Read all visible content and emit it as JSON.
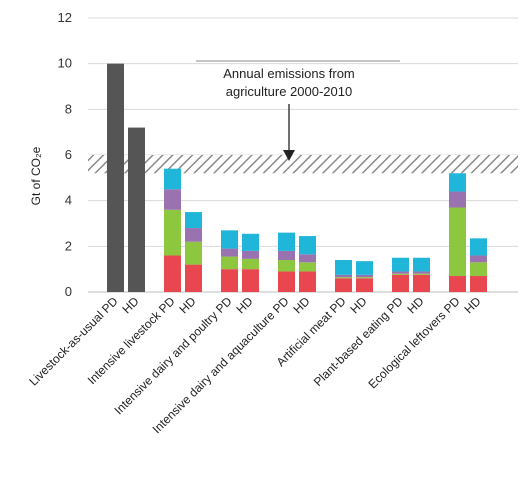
{
  "chart_data": {
    "type": "bar",
    "stacked": true,
    "ylabel": "Gt of CO₂e",
    "ylim": [
      0,
      12
    ],
    "yticks": [
      0,
      2,
      4,
      6,
      8,
      10,
      12
    ],
    "grid": true,
    "legend": "none",
    "groups": [
      "Livestock-as-usual",
      "Intensive livestock",
      "Intensive dairy and poultry",
      "Intensive dairy and aquaculture",
      "Artificial meat",
      "Plant-based eating",
      "Ecological leftovers"
    ],
    "categories": [
      "Livestock-as-usual PD",
      "HD",
      "Intensive livestock PD",
      "HD",
      "Intensive dairy and poultry PD",
      "HD",
      "Intensive dairy and aquaculture PD",
      "HD",
      "Artificial meat PD",
      "HD",
      "Plant-based eating PD",
      "HD",
      "Ecological leftovers PD",
      "HD"
    ],
    "series": [
      {
        "color": "#555555",
        "values": [
          10.0,
          7.2,
          0,
          0,
          0,
          0,
          0,
          0,
          0,
          0,
          0,
          0,
          0,
          0
        ]
      },
      {
        "color": "#e8474f",
        "values": [
          0,
          0,
          1.6,
          1.2,
          1.0,
          1.0,
          0.9,
          0.9,
          0.6,
          0.6,
          0.75,
          0.75,
          0.7,
          0.7
        ]
      },
      {
        "color": "#8dc63f",
        "values": [
          0,
          0,
          2.0,
          1.0,
          0.55,
          0.45,
          0.5,
          0.4,
          0.05,
          0.05,
          0.05,
          0.05,
          3.0,
          0.6
        ]
      },
      {
        "color": "#9b72b0",
        "values": [
          0,
          0,
          0.9,
          0.6,
          0.35,
          0.35,
          0.4,
          0.35,
          0.1,
          0.1,
          0.1,
          0.1,
          0.7,
          0.3
        ]
      },
      {
        "color": "#1fb6d9",
        "values": [
          0,
          0,
          0.9,
          0.7,
          0.8,
          0.75,
          0.8,
          0.8,
          0.65,
          0.6,
          0.6,
          0.6,
          0.8,
          0.75
        ]
      }
    ],
    "annotation": {
      "text_line1": "Annual emissions from",
      "text_line2": "agriculture 2000-2010",
      "band": [
        5.2,
        6.0
      ]
    }
  }
}
